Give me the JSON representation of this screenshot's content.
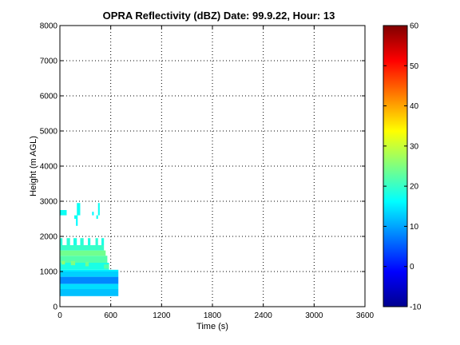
{
  "chart_data": {
    "type": "heatmap",
    "title": "OPRA Reflectivity (dBZ)  Date: 99.9.22, Hour: 13",
    "xlabel": "Time (s)",
    "ylabel": "Height (m AGL)",
    "xlim": [
      0,
      3600
    ],
    "ylim": [
      0,
      8000
    ],
    "xticks": [
      0,
      600,
      1200,
      1800,
      2400,
      3000,
      3600
    ],
    "yticks": [
      0,
      1000,
      2000,
      3000,
      4000,
      5000,
      6000,
      7000,
      8000
    ],
    "grid": true,
    "colormap": "jet",
    "colorbar": {
      "min": -10,
      "max": 60,
      "ticks": [
        -10,
        0,
        10,
        20,
        30,
        40,
        50,
        60
      ]
    },
    "cells": [
      {
        "x0": 0,
        "x1": 690,
        "y0": 300,
        "y1": 500,
        "dbz": 12
      },
      {
        "x0": 0,
        "x1": 690,
        "y0": 500,
        "y1": 650,
        "dbz": 14
      },
      {
        "x0": 0,
        "x1": 690,
        "y0": 650,
        "y1": 850,
        "dbz": 8
      },
      {
        "x0": 0,
        "x1": 690,
        "y0": 850,
        "y1": 1000,
        "dbz": 13
      },
      {
        "x0": 0,
        "x1": 690,
        "y0": 1000,
        "y1": 1050,
        "dbz": 15
      },
      {
        "x0": 0,
        "x1": 580,
        "y0": 1050,
        "y1": 1250,
        "dbz": 18
      },
      {
        "x0": 0,
        "x1": 560,
        "y0": 1250,
        "y1": 1450,
        "dbz": 22
      },
      {
        "x0": 0,
        "x1": 540,
        "y0": 1450,
        "y1": 1600,
        "dbz": 24
      },
      {
        "x0": 0,
        "x1": 520,
        "y0": 1600,
        "y1": 1750,
        "dbz": 20
      },
      {
        "x0": 0,
        "x1": 30,
        "y0": 1750,
        "y1": 1950,
        "dbz": 19
      },
      {
        "x0": 80,
        "x1": 120,
        "y0": 1750,
        "y1": 1950,
        "dbz": 19
      },
      {
        "x0": 160,
        "x1": 200,
        "y0": 1750,
        "y1": 1950,
        "dbz": 18
      },
      {
        "x0": 240,
        "x1": 280,
        "y0": 1750,
        "y1": 1950,
        "dbz": 19
      },
      {
        "x0": 330,
        "x1": 360,
        "y0": 1750,
        "y1": 1950,
        "dbz": 18
      },
      {
        "x0": 420,
        "x1": 450,
        "y0": 1750,
        "y1": 1950,
        "dbz": 19
      },
      {
        "x0": 490,
        "x1": 520,
        "y0": 1750,
        "y1": 1950,
        "dbz": 18
      },
      {
        "x0": 20,
        "x1": 60,
        "y0": 1200,
        "y1": 1300,
        "dbz": 26
      },
      {
        "x0": 130,
        "x1": 180,
        "y0": 1180,
        "y1": 1300,
        "dbz": 25
      },
      {
        "x0": 300,
        "x1": 340,
        "y0": 1150,
        "y1": 1280,
        "dbz": 24
      },
      {
        "x0": 520,
        "x1": 580,
        "y0": 1080,
        "y1": 1200,
        "dbz": 22
      },
      {
        "x0": 0,
        "x1": 80,
        "y0": 2600,
        "y1": 2750,
        "dbz": 17
      },
      {
        "x0": 200,
        "x1": 240,
        "y0": 2600,
        "y1": 2750,
        "dbz": 17
      },
      {
        "x0": 200,
        "x1": 240,
        "y0": 2750,
        "y1": 2950,
        "dbz": 17
      },
      {
        "x0": 170,
        "x1": 210,
        "y0": 2500,
        "y1": 2600,
        "dbz": 17
      },
      {
        "x0": 190,
        "x1": 210,
        "y0": 2300,
        "y1": 2500,
        "dbz": 16
      },
      {
        "x0": 450,
        "x1": 470,
        "y0": 2600,
        "y1": 2950,
        "dbz": 17
      },
      {
        "x0": 430,
        "x1": 450,
        "y0": 2500,
        "y1": 2600,
        "dbz": 17
      },
      {
        "x0": 380,
        "x1": 400,
        "y0": 2600,
        "y1": 2700,
        "dbz": 16
      }
    ]
  }
}
